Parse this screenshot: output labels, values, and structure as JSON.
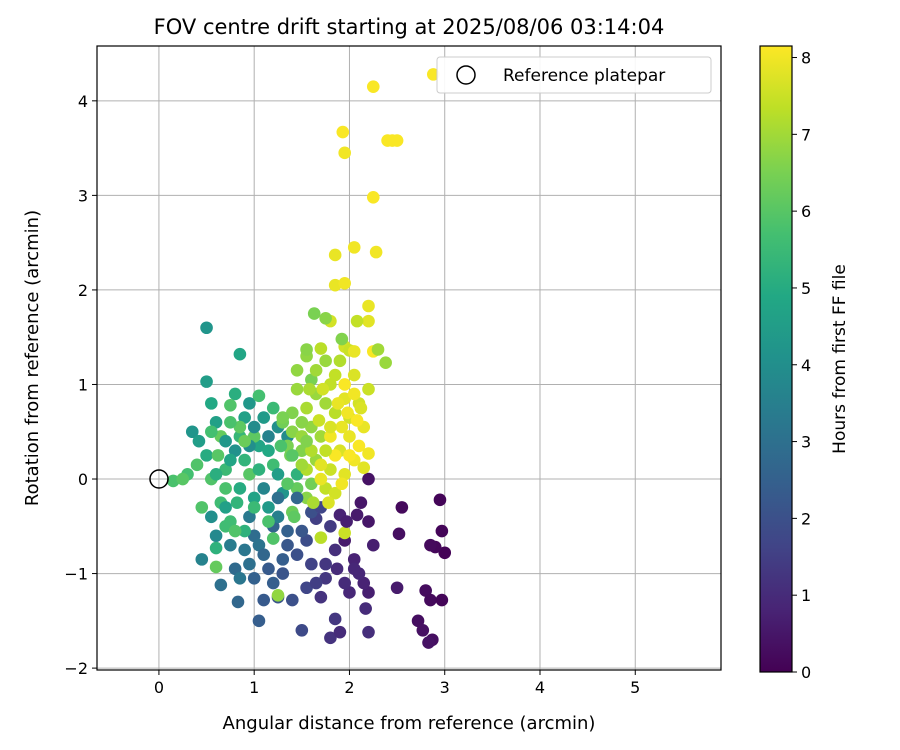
{
  "chart_data": {
    "type": "scatter",
    "title": "FOV centre drift starting at 2025/08/06 03:14:04",
    "xlabel": "Angular distance from reference (arcmin)",
    "ylabel": "Rotation from reference (arcmin)",
    "xlim": [
      -0.65,
      5.9
    ],
    "ylim": [
      -2.02,
      4.58
    ],
    "xticks": [
      0,
      1,
      2,
      3,
      4,
      5
    ],
    "yticks": [
      -2,
      -1,
      0,
      1,
      2,
      3,
      4
    ],
    "grid": true,
    "colormap": "viridis",
    "colorbar": {
      "label": "Hours from first FF file",
      "range": [
        0,
        8.15
      ],
      "ticks": [
        0,
        1,
        2,
        3,
        4,
        5,
        6,
        7,
        8
      ]
    },
    "legend": {
      "position": "top-right",
      "entries": [
        {
          "label": "Reference platepar",
          "marker": "open-circle"
        }
      ]
    },
    "reference_point": {
      "x": 0,
      "y": 0
    },
    "points": [
      {
        "x": 2.95,
        "y": -0.22,
        "t": 0.1
      },
      {
        "x": 2.55,
        "y": -0.3,
        "t": 0.2
      },
      {
        "x": 2.97,
        "y": -0.55,
        "t": 0.1
      },
      {
        "x": 3.0,
        "y": -0.78,
        "t": 0.05
      },
      {
        "x": 2.9,
        "y": -0.72,
        "t": 0.15
      },
      {
        "x": 2.85,
        "y": -0.7,
        "t": 0.2
      },
      {
        "x": 2.52,
        "y": -0.58,
        "t": 0.3
      },
      {
        "x": 2.8,
        "y": -1.18,
        "t": 0.25
      },
      {
        "x": 2.85,
        "y": -1.28,
        "t": 0.2
      },
      {
        "x": 2.97,
        "y": -1.28,
        "t": 0.1
      },
      {
        "x": 2.72,
        "y": -1.5,
        "t": 0.3
      },
      {
        "x": 2.77,
        "y": -1.6,
        "t": 0.35
      },
      {
        "x": 2.87,
        "y": -1.7,
        "t": 0.3
      },
      {
        "x": 2.83,
        "y": -1.73,
        "t": 0.4
      },
      {
        "x": 2.5,
        "y": -1.15,
        "t": 0.6
      },
      {
        "x": 2.2,
        "y": -1.2,
        "t": 0.7
      },
      {
        "x": 2.15,
        "y": -1.1,
        "t": 0.8
      },
      {
        "x": 2.17,
        "y": -1.37,
        "t": 1.0
      },
      {
        "x": 2.2,
        "y": -1.62,
        "t": 1.1
      },
      {
        "x": 1.85,
        "y": -1.48,
        "t": 1.3
      },
      {
        "x": 1.8,
        "y": -1.68,
        "t": 1.2
      },
      {
        "x": 1.9,
        "y": -1.62,
        "t": 1.0
      },
      {
        "x": 2.0,
        "y": -1.2,
        "t": 0.9
      },
      {
        "x": 1.7,
        "y": -1.25,
        "t": 1.2
      },
      {
        "x": 1.75,
        "y": -1.05,
        "t": 1.3
      },
      {
        "x": 1.87,
        "y": -0.95,
        "t": 1.0
      },
      {
        "x": 2.05,
        "y": -0.85,
        "t": 0.8
      },
      {
        "x": 1.95,
        "y": -0.65,
        "t": 0.6
      },
      {
        "x": 2.2,
        "y": -0.45,
        "t": 0.5
      },
      {
        "x": 2.08,
        "y": -0.38,
        "t": 0.6
      },
      {
        "x": 2.25,
        "y": -0.7,
        "t": 0.7
      },
      {
        "x": 2.1,
        "y": -1.0,
        "t": 0.9
      },
      {
        "x": 1.9,
        "y": -0.38,
        "t": 0.8
      },
      {
        "x": 2.2,
        "y": 0.0,
        "t": 0.4
      },
      {
        "x": 1.65,
        "y": -0.42,
        "t": 1.5
      },
      {
        "x": 1.6,
        "y": -0.9,
        "t": 1.6
      },
      {
        "x": 1.55,
        "y": -1.15,
        "t": 1.7
      },
      {
        "x": 1.5,
        "y": -1.6,
        "t": 1.8
      },
      {
        "x": 1.4,
        "y": -1.28,
        "t": 2.0
      },
      {
        "x": 1.25,
        "y": -1.25,
        "t": 2.1
      },
      {
        "x": 1.1,
        "y": -1.28,
        "t": 2.3
      },
      {
        "x": 1.05,
        "y": -1.5,
        "t": 2.4
      },
      {
        "x": 0.83,
        "y": -1.3,
        "t": 2.7
      },
      {
        "x": 0.65,
        "y": -1.12,
        "t": 3.0
      },
      {
        "x": 0.8,
        "y": -0.95,
        "t": 2.8
      },
      {
        "x": 1.0,
        "y": -1.05,
        "t": 2.5
      },
      {
        "x": 1.15,
        "y": -0.95,
        "t": 2.3
      },
      {
        "x": 1.3,
        "y": -1.0,
        "t": 2.1
      },
      {
        "x": 1.45,
        "y": -0.8,
        "t": 2.0
      },
      {
        "x": 1.35,
        "y": -0.7,
        "t": 2.2
      },
      {
        "x": 1.55,
        "y": -0.65,
        "t": 1.9
      },
      {
        "x": 1.2,
        "y": -0.5,
        "t": 2.6
      },
      {
        "x": 1.0,
        "y": -0.6,
        "t": 2.9
      },
      {
        "x": 0.9,
        "y": -0.75,
        "t": 3.2
      },
      {
        "x": 0.75,
        "y": -0.7,
        "t": 3.4
      },
      {
        "x": 0.45,
        "y": -0.85,
        "t": 3.6
      },
      {
        "x": 0.6,
        "y": -0.6,
        "t": 3.8
      },
      {
        "x": 0.55,
        "y": -0.4,
        "t": 4.0
      },
      {
        "x": 0.35,
        "y": 0.5,
        "t": 4.2
      },
      {
        "x": 0.42,
        "y": 0.4,
        "t": 4.5
      },
      {
        "x": 0.5,
        "y": 1.6,
        "t": 4.2
      },
      {
        "x": 0.5,
        "y": 1.03,
        "t": 4.5
      },
      {
        "x": 0.85,
        "y": 1.32,
        "t": 4.8
      },
      {
        "x": 0.55,
        "y": 0.8,
        "t": 4.9
      },
      {
        "x": 0.6,
        "y": 0.6,
        "t": 4.6
      },
      {
        "x": 0.5,
        "y": 0.25,
        "t": 5.0
      },
      {
        "x": 0.3,
        "y": 0.05,
        "t": 5.7
      },
      {
        "x": 0.15,
        "y": -0.02,
        "t": 5.8
      },
      {
        "x": 0.25,
        "y": 0.0,
        "t": 6.0
      },
      {
        "x": 0.45,
        "y": -0.3,
        "t": 5.9
      },
      {
        "x": 0.65,
        "y": -0.25,
        "t": 5.6
      },
      {
        "x": 0.6,
        "y": -0.93,
        "t": 6.2
      },
      {
        "x": 0.6,
        "y": -0.73,
        "t": 5.2
      },
      {
        "x": 0.75,
        "y": -0.45,
        "t": 5.6
      },
      {
        "x": 1.25,
        "y": -1.23,
        "t": 6.8
      },
      {
        "x": 1.2,
        "y": -0.63,
        "t": 5.9
      },
      {
        "x": 1.4,
        "y": -0.35,
        "t": 6.3
      },
      {
        "x": 1.7,
        "y": -0.62,
        "t": 7.3
      },
      {
        "x": 1.95,
        "y": -0.57,
        "t": 7.5
      },
      {
        "x": 1.55,
        "y": -0.2,
        "t": 6.7
      },
      {
        "x": 0.95,
        "y": 0.8,
        "t": 4.3
      },
      {
        "x": 0.8,
        "y": 0.9,
        "t": 5.1
      },
      {
        "x": 1.05,
        "y": 0.88,
        "t": 5.7
      },
      {
        "x": 0.75,
        "y": 0.78,
        "t": 5.9
      },
      {
        "x": 1.1,
        "y": 0.65,
        "t": 4.4
      },
      {
        "x": 1.25,
        "y": 0.55,
        "t": 4.0
      },
      {
        "x": 1.35,
        "y": 0.45,
        "t": 3.9
      },
      {
        "x": 1.05,
        "y": 0.35,
        "t": 4.8
      },
      {
        "x": 0.9,
        "y": 0.2,
        "t": 5.3
      },
      {
        "x": 0.7,
        "y": 0.1,
        "t": 5.5
      },
      {
        "x": 0.85,
        "y": -0.1,
        "t": 5.0
      },
      {
        "x": 1.0,
        "y": -0.2,
        "t": 4.7
      },
      {
        "x": 1.15,
        "y": -0.3,
        "t": 4.4
      },
      {
        "x": 1.3,
        "y": -0.15,
        "t": 4.2
      },
      {
        "x": 1.45,
        "y": 0.05,
        "t": 5.2
      },
      {
        "x": 1.2,
        "y": 0.15,
        "t": 5.6
      },
      {
        "x": 1.0,
        "y": 0.45,
        "t": 6.1
      },
      {
        "x": 0.95,
        "y": 0.05,
        "t": 6.0
      },
      {
        "x": 0.7,
        "y": -0.1,
        "t": 5.8
      },
      {
        "x": 0.85,
        "y": 0.45,
        "t": 5.4
      },
      {
        "x": 0.65,
        "y": 0.45,
        "t": 6.2
      },
      {
        "x": 0.8,
        "y": 0.3,
        "t": 4.1
      },
      {
        "x": 1.1,
        "y": -0.1,
        "t": 3.7
      },
      {
        "x": 1.25,
        "y": -0.4,
        "t": 3.5
      },
      {
        "x": 0.95,
        "y": -0.4,
        "t": 3.3
      },
      {
        "x": 0.7,
        "y": -0.3,
        "t": 4.6
      },
      {
        "x": 0.55,
        "y": 0.0,
        "t": 5.9
      },
      {
        "x": 0.62,
        "y": 0.25,
        "t": 6.0
      },
      {
        "x": 1.38,
        "y": 0.25,
        "t": 6.4
      },
      {
        "x": 1.5,
        "y": 0.3,
        "t": 6.6
      },
      {
        "x": 1.6,
        "y": 0.55,
        "t": 6.8
      },
      {
        "x": 1.7,
        "y": 0.45,
        "t": 7.0
      },
      {
        "x": 1.65,
        "y": 0.2,
        "t": 6.9
      },
      {
        "x": 1.55,
        "y": 0.1,
        "t": 7.2
      },
      {
        "x": 1.8,
        "y": 0.1,
        "t": 7.5
      },
      {
        "x": 1.9,
        "y": 0.3,
        "t": 7.7
      },
      {
        "x": 2.0,
        "y": 0.45,
        "t": 7.9
      },
      {
        "x": 2.05,
        "y": 0.2,
        "t": 8.0
      },
      {
        "x": 1.95,
        "y": 0.05,
        "t": 7.8
      },
      {
        "x": 2.1,
        "y": 0.35,
        "t": 8.1
      },
      {
        "x": 2.15,
        "y": 0.55,
        "t": 7.9
      },
      {
        "x": 2.0,
        "y": 0.65,
        "t": 7.6
      },
      {
        "x": 1.85,
        "y": 0.7,
        "t": 7.3
      },
      {
        "x": 1.75,
        "y": 0.8,
        "t": 7.0
      },
      {
        "x": 1.65,
        "y": 0.9,
        "t": 6.9
      },
      {
        "x": 1.6,
        "y": 1.05,
        "t": 6.5
      },
      {
        "x": 1.8,
        "y": 1.0,
        "t": 7.4
      },
      {
        "x": 1.95,
        "y": 0.85,
        "t": 7.8
      },
      {
        "x": 2.1,
        "y": 0.8,
        "t": 7.6
      },
      {
        "x": 2.2,
        "y": 0.95,
        "t": 7.5
      },
      {
        "x": 2.05,
        "y": 1.1,
        "t": 7.7
      },
      {
        "x": 1.9,
        "y": 1.25,
        "t": 7.2
      },
      {
        "x": 1.75,
        "y": 1.25,
        "t": 6.9
      },
      {
        "x": 1.55,
        "y": 1.3,
        "t": 6.8
      },
      {
        "x": 1.55,
        "y": 1.37,
        "t": 6.7
      },
      {
        "x": 1.7,
        "y": 1.38,
        "t": 7.3
      },
      {
        "x": 1.95,
        "y": 1.4,
        "t": 7.6
      },
      {
        "x": 1.92,
        "y": 1.48,
        "t": 6.6
      },
      {
        "x": 2.0,
        "y": 1.36,
        "t": 7.5
      },
      {
        "x": 2.05,
        "y": 1.35,
        "t": 7.9
      },
      {
        "x": 2.25,
        "y": 1.35,
        "t": 8.1
      },
      {
        "x": 2.3,
        "y": 1.37,
        "t": 7.0
      },
      {
        "x": 2.38,
        "y": 1.23,
        "t": 6.9
      },
      {
        "x": 2.2,
        "y": 1.67,
        "t": 7.8
      },
      {
        "x": 2.2,
        "y": 1.83,
        "t": 7.9
      },
      {
        "x": 2.08,
        "y": 1.67,
        "t": 7.4
      },
      {
        "x": 1.8,
        "y": 1.67,
        "t": 7.6
      },
      {
        "x": 1.75,
        "y": 1.7,
        "t": 6.7
      },
      {
        "x": 1.63,
        "y": 1.75,
        "t": 6.5
      },
      {
        "x": 1.45,
        "y": 1.15,
        "t": 6.8
      },
      {
        "x": 1.45,
        "y": 0.95,
        "t": 6.9
      },
      {
        "x": 1.55,
        "y": 0.75,
        "t": 7.1
      },
      {
        "x": 1.4,
        "y": 0.7,
        "t": 6.6
      },
      {
        "x": 1.3,
        "y": 0.6,
        "t": 6.4
      },
      {
        "x": 1.5,
        "y": 0.6,
        "t": 6.7
      },
      {
        "x": 1.35,
        "y": 0.35,
        "t": 6.5
      },
      {
        "x": 1.45,
        "y": -0.1,
        "t": 6.2
      },
      {
        "x": 1.35,
        "y": -0.05,
        "t": 6.0
      },
      {
        "x": 1.6,
        "y": -0.05,
        "t": 6.4
      },
      {
        "x": 1.75,
        "y": -0.1,
        "t": 7.4
      },
      {
        "x": 1.85,
        "y": -0.15,
        "t": 7.6
      },
      {
        "x": 1.7,
        "y": 0.0,
        "t": 7.9
      },
      {
        "x": 1.85,
        "y": 0.25,
        "t": 8.1
      },
      {
        "x": 2.0,
        "y": 0.25,
        "t": 8.1
      },
      {
        "x": 2.2,
        "y": 0.27,
        "t": 8.0
      },
      {
        "x": 2.15,
        "y": 0.12,
        "t": 7.8
      },
      {
        "x": 1.92,
        "y": 0.55,
        "t": 7.9
      },
      {
        "x": 2.08,
        "y": 0.62,
        "t": 8.1
      },
      {
        "x": 1.95,
        "y": 1.0,
        "t": 8.1
      },
      {
        "x": 2.05,
        "y": 0.9,
        "t": 8.0
      },
      {
        "x": 2.12,
        "y": 0.75,
        "t": 7.7
      },
      {
        "x": 1.8,
        "y": 0.45,
        "t": 8.0
      },
      {
        "x": 1.85,
        "y": 2.05,
        "t": 7.9
      },
      {
        "x": 1.85,
        "y": 2.37,
        "t": 7.9
      },
      {
        "x": 2.05,
        "y": 2.45,
        "t": 8.0
      },
      {
        "x": 2.28,
        "y": 2.4,
        "t": 8.0
      },
      {
        "x": 1.95,
        "y": 2.07,
        "t": 8.0
      },
      {
        "x": 2.25,
        "y": 2.98,
        "t": 8.1
      },
      {
        "x": 1.95,
        "y": 3.45,
        "t": 8.0
      },
      {
        "x": 1.93,
        "y": 3.67,
        "t": 8.1
      },
      {
        "x": 2.4,
        "y": 3.58,
        "t": 8.1
      },
      {
        "x": 2.45,
        "y": 3.58,
        "t": 8.1
      },
      {
        "x": 2.5,
        "y": 3.58,
        "t": 8.1
      },
      {
        "x": 2.25,
        "y": 4.15,
        "t": 8.1
      },
      {
        "x": 2.88,
        "y": 4.28,
        "t": 8.1
      },
      {
        "x": 0.9,
        "y": 0.65,
        "t": 4.6
      },
      {
        "x": 1.05,
        "y": 0.1,
        "t": 5.2
      },
      {
        "x": 1.15,
        "y": 0.3,
        "t": 4.9
      },
      {
        "x": 1.25,
        "y": 0.05,
        "t": 4.5
      },
      {
        "x": 0.75,
        "y": 0.2,
        "t": 4.8
      },
      {
        "x": 0.6,
        "y": 0.05,
        "t": 5.1
      },
      {
        "x": 0.82,
        "y": -0.25,
        "t": 5.3
      },
      {
        "x": 1.0,
        "y": -0.3,
        "t": 5.5
      },
      {
        "x": 1.15,
        "y": -0.45,
        "t": 5.8
      },
      {
        "x": 0.9,
        "y": -0.55,
        "t": 5.2
      },
      {
        "x": 0.7,
        "y": -0.5,
        "t": 5.6
      },
      {
        "x": 0.8,
        "y": -0.55,
        "t": 5.9
      },
      {
        "x": 1.05,
        "y": -0.7,
        "t": 3.1
      },
      {
        "x": 1.3,
        "y": -0.85,
        "t": 2.4
      },
      {
        "x": 1.5,
        "y": -0.55,
        "t": 2.2
      },
      {
        "x": 1.6,
        "y": -0.35,
        "t": 2.0
      },
      {
        "x": 1.7,
        "y": -0.3,
        "t": 1.7
      },
      {
        "x": 1.8,
        "y": -0.5,
        "t": 1.4
      },
      {
        "x": 1.85,
        "y": -0.75,
        "t": 1.1
      },
      {
        "x": 1.75,
        "y": -0.9,
        "t": 1.3
      },
      {
        "x": 1.65,
        "y": -1.1,
        "t": 1.5
      },
      {
        "x": 1.95,
        "y": -1.1,
        "t": 1.0
      },
      {
        "x": 2.05,
        "y": -0.95,
        "t": 0.9
      },
      {
        "x": 1.97,
        "y": -0.45,
        "t": 0.7
      },
      {
        "x": 2.12,
        "y": -0.25,
        "t": 0.5
      },
      {
        "x": 1.2,
        "y": -1.1,
        "t": 2.4
      },
      {
        "x": 1.1,
        "y": -0.8,
        "t": 2.7
      },
      {
        "x": 0.95,
        "y": -0.9,
        "t": 3.0
      },
      {
        "x": 0.85,
        "y": -1.05,
        "t": 3.2
      },
      {
        "x": 1.35,
        "y": -0.55,
        "t": 2.5
      },
      {
        "x": 1.45,
        "y": -0.2,
        "t": 2.7
      },
      {
        "x": 1.25,
        "y": -0.2,
        "t": 3.0
      },
      {
        "x": 1.15,
        "y": 0.45,
        "t": 3.6
      },
      {
        "x": 1.0,
        "y": 0.55,
        "t": 3.9
      },
      {
        "x": 0.95,
        "y": 0.35,
        "t": 4.0
      },
      {
        "x": 0.7,
        "y": 0.4,
        "t": 4.3
      },
      {
        "x": 0.55,
        "y": 0.5,
        "t": 5.7
      },
      {
        "x": 0.4,
        "y": 0.15,
        "t": 5.9
      },
      {
        "x": 0.85,
        "y": 0.55,
        "t": 6.1
      },
      {
        "x": 0.9,
        "y": 0.4,
        "t": 6.3
      },
      {
        "x": 0.75,
        "y": 0.6,
        "t": 5.8
      },
      {
        "x": 1.2,
        "y": 0.75,
        "t": 5.5
      },
      {
        "x": 1.3,
        "y": 0.65,
        "t": 6.5
      },
      {
        "x": 1.4,
        "y": 0.5,
        "t": 6.7
      },
      {
        "x": 1.5,
        "y": 0.45,
        "t": 6.9
      },
      {
        "x": 1.5,
        "y": 0.15,
        "t": 7.0
      },
      {
        "x": 1.6,
        "y": 0.3,
        "t": 7.2
      },
      {
        "x": 1.75,
        "y": 0.3,
        "t": 7.4
      },
      {
        "x": 1.68,
        "y": 0.62,
        "t": 7.5
      },
      {
        "x": 1.8,
        "y": 0.55,
        "t": 7.7
      },
      {
        "x": 1.88,
        "y": 0.8,
        "t": 7.9
      },
      {
        "x": 1.98,
        "y": 0.7,
        "t": 8.0
      },
      {
        "x": 1.72,
        "y": 0.95,
        "t": 7.6
      },
      {
        "x": 1.85,
        "y": 1.1,
        "t": 7.4
      },
      {
        "x": 1.65,
        "y": 1.15,
        "t": 7.0
      },
      {
        "x": 1.58,
        "y": 0.95,
        "t": 7.1
      },
      {
        "x": 1.4,
        "y": 0.25,
        "t": 6.0
      },
      {
        "x": 1.28,
        "y": 0.35,
        "t": 5.8
      },
      {
        "x": 1.42,
        "y": -0.4,
        "t": 6.1
      },
      {
        "x": 1.62,
        "y": -0.25,
        "t": 7.1
      },
      {
        "x": 1.78,
        "y": -0.25,
        "t": 7.7
      },
      {
        "x": 1.92,
        "y": -0.05,
        "t": 8.0
      },
      {
        "x": 1.7,
        "y": 0.15,
        "t": 7.8
      },
      {
        "x": 1.55,
        "y": 0.4,
        "t": 6.6
      }
    ]
  }
}
